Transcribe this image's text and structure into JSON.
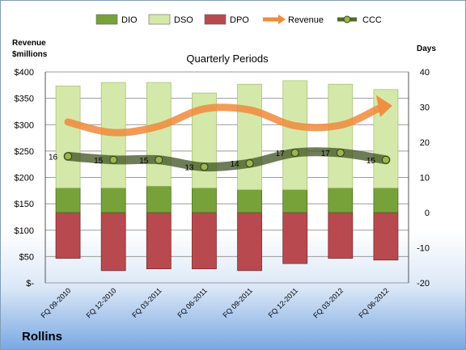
{
  "chart_data": {
    "type": "bar",
    "title": "Quarterly Periods",
    "company": "Rollins",
    "left_axis_label": [
      "Revenue",
      "$millions"
    ],
    "right_axis_label": "Days",
    "categories": [
      "FQ 09-2010",
      "FQ 12-2010",
      "FQ 03-2011",
      "FQ 06-2011",
      "FQ 09-2011",
      "FQ 12-2011",
      "FQ 03-2012",
      "FQ 06-2012"
    ],
    "left_axis": {
      "min": 0,
      "max": 400,
      "step": 50,
      "ticks": [
        "$-",
        "$50",
        "$100",
        "$150",
        "$200",
        "$250",
        "$300",
        "$350",
        "$400"
      ]
    },
    "right_axis": {
      "min": -20,
      "max": 40,
      "step": 10,
      "ticks": [
        "-20",
        "-10",
        "0",
        "10",
        "20",
        "30",
        "40"
      ]
    },
    "series": [
      {
        "name": "DIO",
        "axis": "right",
        "kind": "stacked-bar",
        "color": "#77a23a",
        "values": [
          7,
          7,
          7.5,
          7,
          6.5,
          6.5,
          7,
          7
        ]
      },
      {
        "name": "DSO",
        "axis": "right",
        "kind": "stacked-bar",
        "color": "#d4e9a9",
        "values": [
          29,
          30,
          29.5,
          27,
          30,
          31,
          29.5,
          28
        ]
      },
      {
        "name": "DPO",
        "axis": "right",
        "kind": "stacked-bar-negative",
        "color": "#b84a4f",
        "values": [
          -13,
          -16.5,
          -16,
          -16,
          -16.5,
          -14.5,
          -13,
          -13.5
        ]
      },
      {
        "name": "Revenue",
        "axis": "left",
        "kind": "line",
        "color": "#f08a3c",
        "values": [
          305,
          285,
          297,
          330,
          328,
          298,
          299,
          333
        ]
      },
      {
        "name": "CCC",
        "axis": "right",
        "kind": "line",
        "color": "#4f6b28",
        "values": [
          16,
          15,
          15,
          13,
          14,
          17,
          17,
          15
        ],
        "labels": [
          "16",
          "15",
          "15",
          "13",
          "14",
          "17",
          "17",
          "15"
        ]
      }
    ],
    "legend_position": "top",
    "grid": true
  }
}
